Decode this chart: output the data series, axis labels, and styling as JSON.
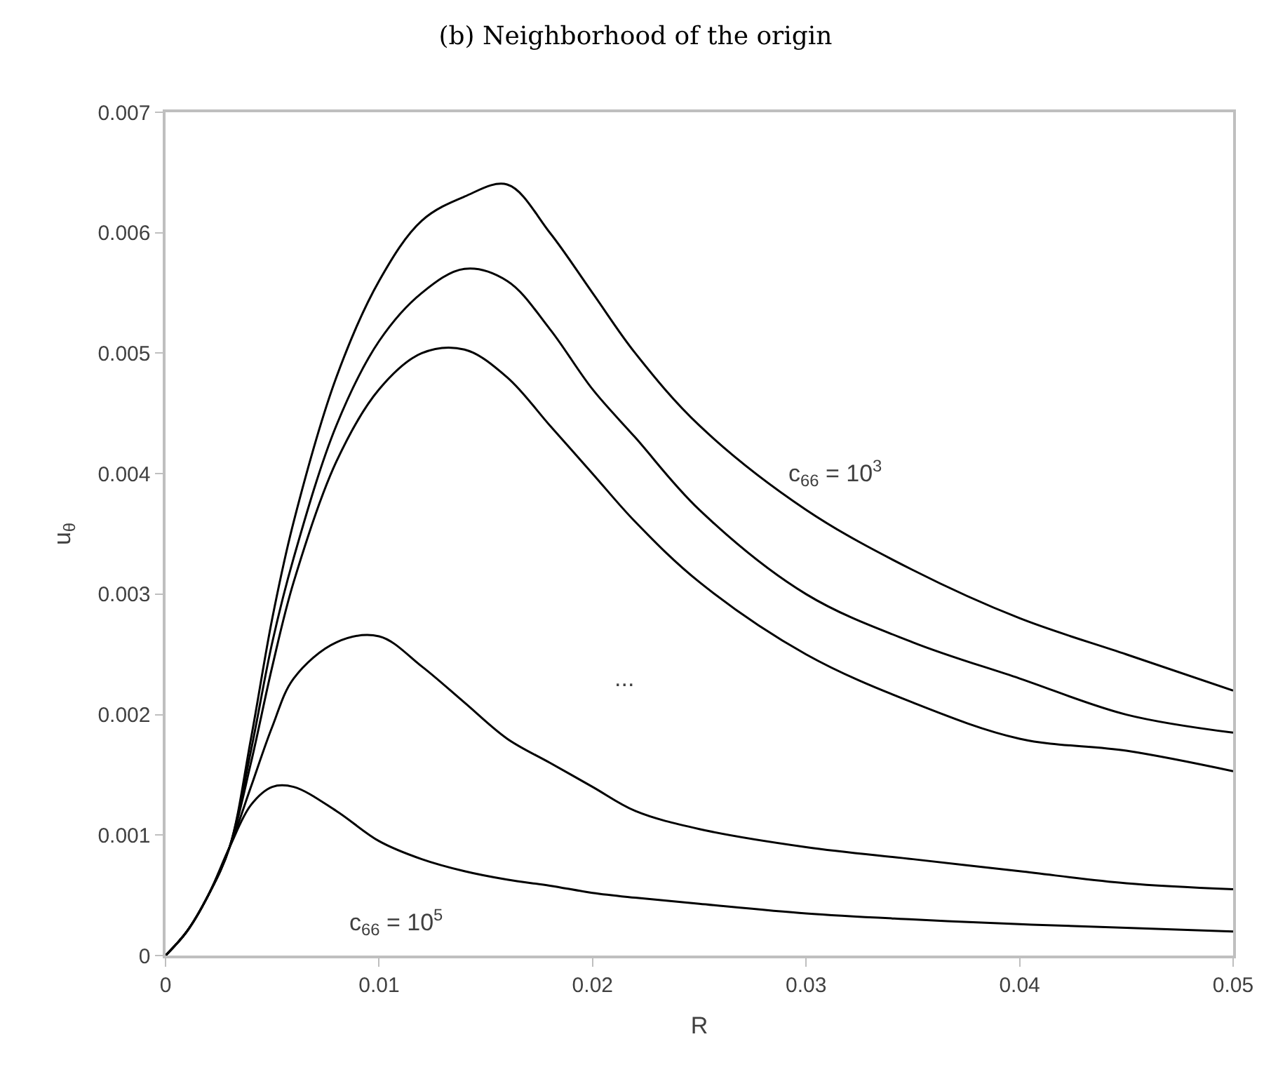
{
  "chart_data": {
    "type": "line",
    "title": "(b) Neighborhood of the origin",
    "xlabel": "R",
    "ylabel": "u$_{θ}$",
    "x": [
      0,
      0.001,
      0.002,
      0.003,
      0.004,
      0.005,
      0.006,
      0.008,
      0.01,
      0.012,
      0.014,
      0.016,
      0.018,
      0.02,
      0.022,
      0.025,
      0.03,
      0.035,
      0.04,
      0.045,
      0.05
    ],
    "series": [
      {
        "color": "#000000",
        "values": [
          0,
          0.0002,
          0.0005,
          0.0009,
          0.0018,
          0.0028,
          0.0036,
          0.0048,
          0.0056,
          0.0061,
          0.0063,
          0.0064,
          0.006,
          0.0055,
          0.005,
          0.0044,
          0.0037,
          0.0032,
          0.0028,
          0.0025,
          0.0022
        ]
      },
      {
        "color": "#000000",
        "values": [
          0,
          0.0002,
          0.0005,
          0.0009,
          0.0017,
          0.0026,
          0.0033,
          0.0044,
          0.0051,
          0.0055,
          0.0057,
          0.0056,
          0.0052,
          0.0047,
          0.0043,
          0.0037,
          0.003,
          0.0026,
          0.0023,
          0.002,
          0.00185
        ]
      },
      {
        "color": "#000000",
        "values": [
          0,
          0.0002,
          0.0005,
          0.0009,
          0.0016,
          0.0024,
          0.0031,
          0.0041,
          0.0047,
          0.005,
          0.00503,
          0.0048,
          0.0044,
          0.004,
          0.0036,
          0.0031,
          0.0025,
          0.0021,
          0.0018,
          0.0017,
          0.00153
        ]
      },
      {
        "color": "#000000",
        "values": [
          0,
          0.0002,
          0.0005,
          0.0009,
          0.0014,
          0.0019,
          0.0023,
          0.0026,
          0.00265,
          0.0024,
          0.0021,
          0.0018,
          0.0016,
          0.0014,
          0.0012,
          0.00105,
          0.0009,
          0.0008,
          0.0007,
          0.0006,
          0.00055
        ]
      },
      {
        "color": "#000000",
        "values": [
          0,
          0.0002,
          0.0005,
          0.0009,
          0.00125,
          0.0014,
          0.0014,
          0.0012,
          0.00095,
          0.0008,
          0.0007,
          0.00063,
          0.00058,
          0.00052,
          0.00048,
          0.00043,
          0.00035,
          0.0003,
          0.00026,
          0.00023,
          0.0002
        ]
      }
    ],
    "annotations": [
      "c$_{66}$ = 10$^{3}$",
      "...",
      "c$_{66}$ = 10$^{5}$"
    ],
    "xlim": [
      0,
      0.05
    ],
    "xticks": [
      0,
      0.01,
      0.02,
      0.03,
      0.04,
      0.05
    ],
    "ylim": [
      0,
      0.007
    ],
    "yticks": [
      0,
      0.001,
      0.002,
      0.003,
      0.004,
      0.005,
      0.006,
      0.007
    ],
    "grid": false,
    "marker": "none",
    "line_style": "solid"
  }
}
